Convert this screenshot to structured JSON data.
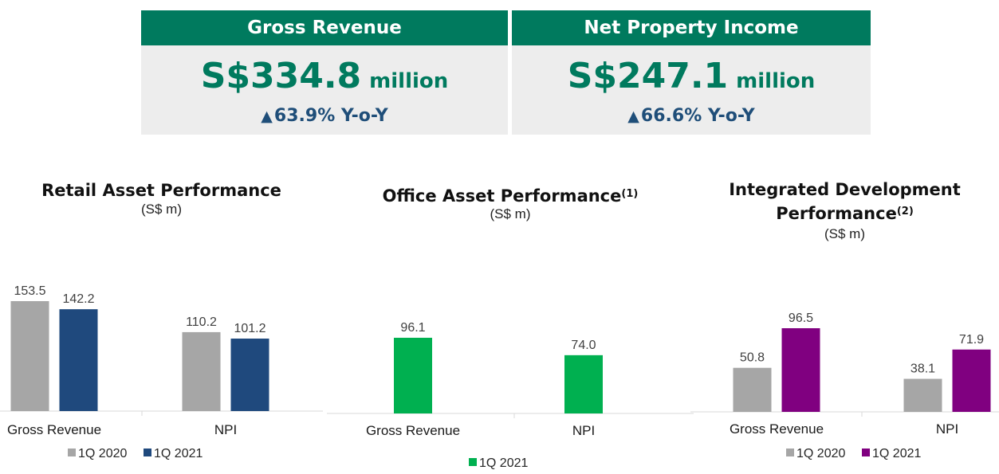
{
  "summary": {
    "gross_revenue": {
      "label": "Gross Revenue",
      "amount": "S$334.8",
      "unit": "million",
      "change": "63.9% Y-o-Y"
    },
    "npi": {
      "label": "Net Property Income",
      "amount": "S$247.1",
      "unit": "million",
      "change": "66.6% Y-o-Y"
    }
  },
  "colors": {
    "header_green": "#007a5e",
    "prior_year": "#a6a6a6",
    "retail": "#1f497d",
    "office": "#00b050",
    "integrated": "#800080",
    "change_text": "#1f4e79"
  },
  "chart_data": [
    {
      "type": "bar",
      "title": "Retail Asset Performance",
      "title_lines": [
        "Retail Asset Performance"
      ],
      "footnote": "",
      "unit": "(S$ m)",
      "categories": [
        "Gross Revenue",
        "NPI"
      ],
      "series": [
        {
          "name": "1Q 2020",
          "values": [
            153.5,
            110.2
          ],
          "labels": [
            "153.5",
            "110.2"
          ]
        },
        {
          "name": "1Q 2021",
          "values": [
            142.2,
            101.2
          ],
          "labels": [
            "142.2",
            "101.2"
          ]
        }
      ],
      "legend_placement": "bottom"
    },
    {
      "type": "bar",
      "title": "Office Asset Performance",
      "title_lines": [
        "Office Asset Performance"
      ],
      "footnote": "(1)",
      "unit": "(S$ m)",
      "categories": [
        "Gross Revenue",
        "NPI"
      ],
      "series": [
        {
          "name": "1Q 2021",
          "values": [
            96.1,
            74.0
          ],
          "labels": [
            "96.1",
            "74.0"
          ]
        }
      ],
      "legend_placement": "bottom"
    },
    {
      "type": "bar",
      "title": "Integrated Development Performance",
      "title_lines": [
        "Integrated Development",
        "Performance"
      ],
      "footnote": "(2)",
      "unit": "(S$ m)",
      "categories": [
        "Gross Revenue",
        "NPI"
      ],
      "series": [
        {
          "name": "1Q 2020",
          "values": [
            50.8,
            38.1
          ],
          "labels": [
            "50.8",
            "38.1"
          ]
        },
        {
          "name": "1Q 2021",
          "values": [
            96.5,
            71.9
          ],
          "labels": [
            "96.5",
            "71.9"
          ]
        }
      ],
      "legend_placement": "bottom"
    }
  ]
}
